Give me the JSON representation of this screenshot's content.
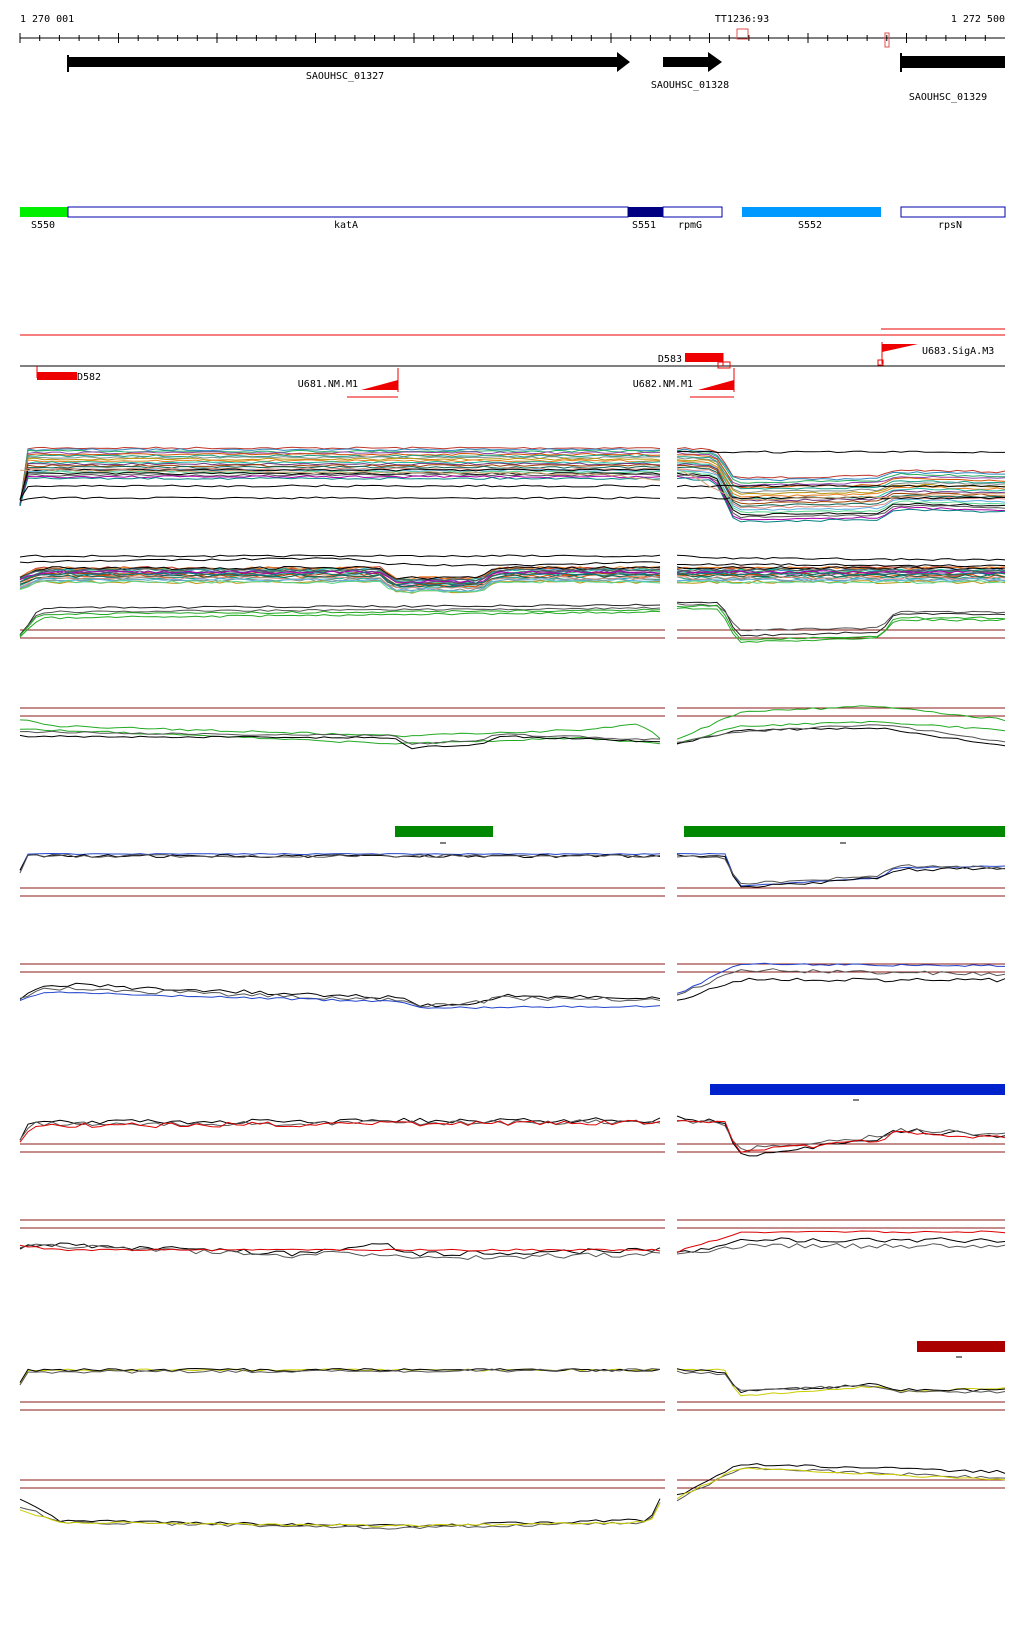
{
  "ruler": {
    "start_label": "1 270 001",
    "end_label": "1 272 500",
    "marker_label": "TT1236:93"
  },
  "genes": [
    {
      "label": "SAOUHSC_01327",
      "color": "#000000"
    },
    {
      "label": "SAOUHSC_01328",
      "color": "#000000"
    },
    {
      "label": "SAOUHSC_01329",
      "color": "#000000"
    }
  ],
  "segments": [
    {
      "label": "S550",
      "color": "#00ee00"
    },
    {
      "label": "katA",
      "color": "#ffffff"
    },
    {
      "label": "S551",
      "color": "#000080"
    },
    {
      "label": "rpmG",
      "color": "#ffffff"
    },
    {
      "label": "S552",
      "color": "#0099ff"
    },
    {
      "label": "rpsN",
      "color": "#ffffff"
    }
  ],
  "features": [
    {
      "label": "D582",
      "color": "#ee0000"
    },
    {
      "label": "D583",
      "color": "#ee0000"
    },
    {
      "label": "U681.NM.M1",
      "color": "#ee0000"
    },
    {
      "label": "U682.NM.M1",
      "color": "#ee0000"
    },
    {
      "label": "U683.SigA.M3",
      "color": "#ee0000"
    }
  ],
  "colors": {
    "expression_green": "#008800",
    "expression_blue": "#0022cc",
    "expression_red": "#aa0000",
    "trace_green": "#22aa22",
    "trace_blue": "#2244cc",
    "trace_red": "#dd0000",
    "trace_yellow": "#cccc00",
    "threshold": "#8b1a1a",
    "outline_blue": "#0000aa"
  }
}
